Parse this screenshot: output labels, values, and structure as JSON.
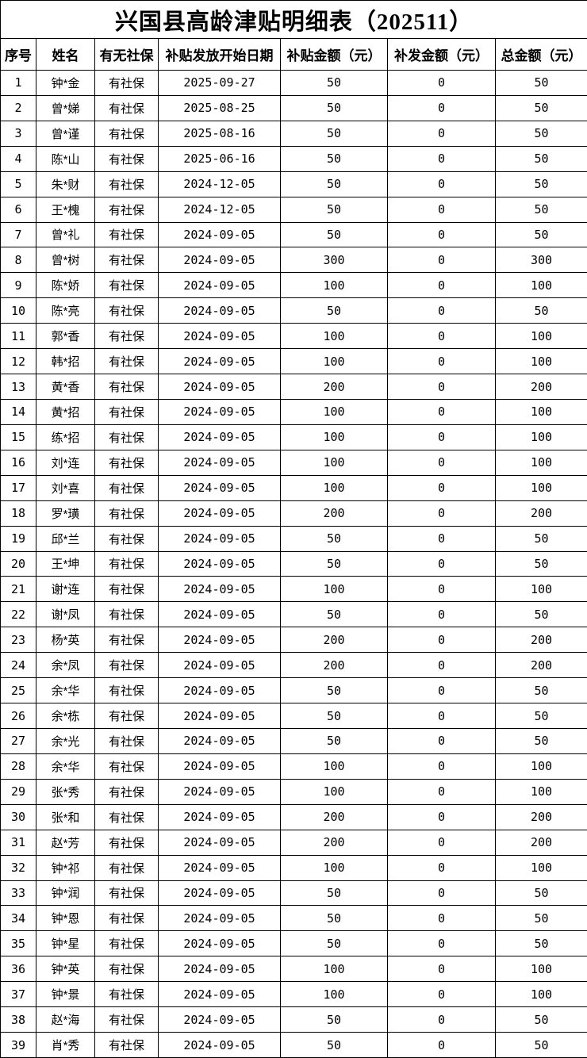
{
  "title": "兴国县高龄津贴明细表（202511）",
  "table": {
    "headers": [
      "序号",
      "姓名",
      "有无社保",
      "补贴发放开始日期",
      "补贴金额（元）",
      "补发金额（元）",
      "总金额（元）"
    ],
    "rows": [
      [
        "1",
        "钟*金",
        "有社保",
        "2025-09-27",
        "50",
        "0",
        "50"
      ],
      [
        "2",
        "曾*娣",
        "有社保",
        "2025-08-25",
        "50",
        "0",
        "50"
      ],
      [
        "3",
        "曾*谨",
        "有社保",
        "2025-08-16",
        "50",
        "0",
        "50"
      ],
      [
        "4",
        "陈*山",
        "有社保",
        "2025-06-16",
        "50",
        "0",
        "50"
      ],
      [
        "5",
        "朱*财",
        "有社保",
        "2024-12-05",
        "50",
        "0",
        "50"
      ],
      [
        "6",
        "王*槐",
        "有社保",
        "2024-12-05",
        "50",
        "0",
        "50"
      ],
      [
        "7",
        "曾*礼",
        "有社保",
        "2024-09-05",
        "50",
        "0",
        "50"
      ],
      [
        "8",
        "曾*树",
        "有社保",
        "2024-09-05",
        "300",
        "0",
        "300"
      ],
      [
        "9",
        "陈*娇",
        "有社保",
        "2024-09-05",
        "100",
        "0",
        "100"
      ],
      [
        "10",
        "陈*亮",
        "有社保",
        "2024-09-05",
        "50",
        "0",
        "50"
      ],
      [
        "11",
        "郭*香",
        "有社保",
        "2024-09-05",
        "100",
        "0",
        "100"
      ],
      [
        "12",
        "韩*招",
        "有社保",
        "2024-09-05",
        "100",
        "0",
        "100"
      ],
      [
        "13",
        "黄*香",
        "有社保",
        "2024-09-05",
        "200",
        "0",
        "200"
      ],
      [
        "14",
        "黄*招",
        "有社保",
        "2024-09-05",
        "100",
        "0",
        "100"
      ],
      [
        "15",
        "练*招",
        "有社保",
        "2024-09-05",
        "100",
        "0",
        "100"
      ],
      [
        "16",
        "刘*连",
        "有社保",
        "2024-09-05",
        "100",
        "0",
        "100"
      ],
      [
        "17",
        "刘*喜",
        "有社保",
        "2024-09-05",
        "100",
        "0",
        "100"
      ],
      [
        "18",
        "罗*璜",
        "有社保",
        "2024-09-05",
        "200",
        "0",
        "200"
      ],
      [
        "19",
        "邱*兰",
        "有社保",
        "2024-09-05",
        "50",
        "0",
        "50"
      ],
      [
        "20",
        "王*坤",
        "有社保",
        "2024-09-05",
        "50",
        "0",
        "50"
      ],
      [
        "21",
        "谢*连",
        "有社保",
        "2024-09-05",
        "100",
        "0",
        "100"
      ],
      [
        "22",
        "谢*凤",
        "有社保",
        "2024-09-05",
        "50",
        "0",
        "50"
      ],
      [
        "23",
        "杨*英",
        "有社保",
        "2024-09-05",
        "200",
        "0",
        "200"
      ],
      [
        "24",
        "余*凤",
        "有社保",
        "2024-09-05",
        "200",
        "0",
        "200"
      ],
      [
        "25",
        "余*华",
        "有社保",
        "2024-09-05",
        "50",
        "0",
        "50"
      ],
      [
        "26",
        "余*栋",
        "有社保",
        "2024-09-05",
        "50",
        "0",
        "50"
      ],
      [
        "27",
        "余*光",
        "有社保",
        "2024-09-05",
        "50",
        "0",
        "50"
      ],
      [
        "28",
        "余*华",
        "有社保",
        "2024-09-05",
        "100",
        "0",
        "100"
      ],
      [
        "29",
        "张*秀",
        "有社保",
        "2024-09-05",
        "100",
        "0",
        "100"
      ],
      [
        "30",
        "张*和",
        "有社保",
        "2024-09-05",
        "200",
        "0",
        "200"
      ],
      [
        "31",
        "赵*芳",
        "有社保",
        "2024-09-05",
        "200",
        "0",
        "200"
      ],
      [
        "32",
        "钟*祁",
        "有社保",
        "2024-09-05",
        "100",
        "0",
        "100"
      ],
      [
        "33",
        "钟*润",
        "有社保",
        "2024-09-05",
        "50",
        "0",
        "50"
      ],
      [
        "34",
        "钟*恩",
        "有社保",
        "2024-09-05",
        "50",
        "0",
        "50"
      ],
      [
        "35",
        "钟*星",
        "有社保",
        "2024-09-05",
        "50",
        "0",
        "50"
      ],
      [
        "36",
        "钟*英",
        "有社保",
        "2024-09-05",
        "100",
        "0",
        "100"
      ],
      [
        "37",
        "钟*景",
        "有社保",
        "2024-09-05",
        "100",
        "0",
        "100"
      ],
      [
        "38",
        "赵*海",
        "有社保",
        "2024-09-05",
        "50",
        "0",
        "50"
      ],
      [
        "39",
        "肖*秀",
        "有社保",
        "2024-09-05",
        "50",
        "0",
        "50"
      ]
    ]
  },
  "colors": {
    "border": "#000000",
    "text": "#000000",
    "background": "#ffffff"
  }
}
